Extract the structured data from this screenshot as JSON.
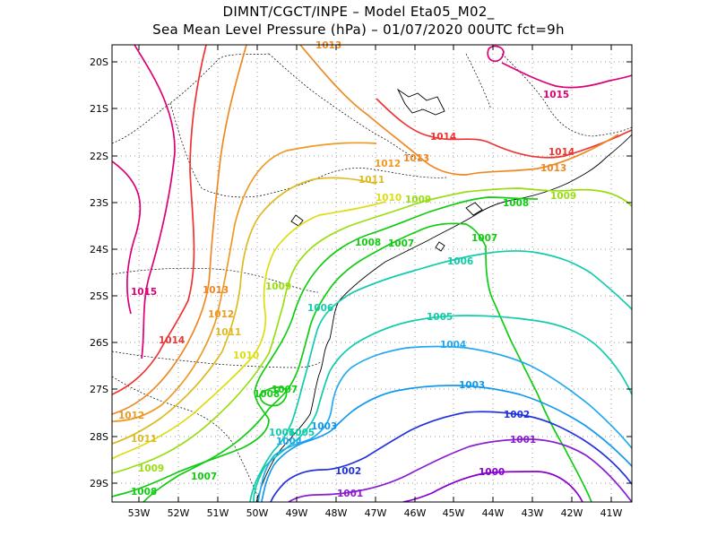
{
  "title": {
    "line1": "DIMNT/CGCT/INPE –  Model Eta05_M02_",
    "line2": "Sea Mean Level Pressure (hPa) – 01/07/2020 00UTC fct=9h"
  },
  "map": {
    "lon_range": [
      -53.7,
      -40.5
    ],
    "lat_range": [
      -29.4,
      -19.8
    ],
    "lat_ticks": [
      "20S",
      "21S",
      "22S",
      "23S",
      "24S",
      "25S",
      "26S",
      "27S",
      "28S",
      "29S"
    ],
    "lon_ticks": [
      "53W",
      "52W",
      "51W",
      "50W",
      "49W",
      "48W",
      "47W",
      "46W",
      "45W",
      "44W",
      "43W",
      "42W",
      "41W"
    ],
    "grid": "dotted"
  },
  "isobar_colors": {
    "1000": "#8800cc",
    "1001": "#8a1fd0",
    "1002": "#2233dd",
    "1003": "#1199ee",
    "1004": "#22aaee",
    "1005": "#11ccaa",
    "1006": "#11ccaa",
    "1007": "#11cc11",
    "1008": "#11cc11",
    "1009": "#99dd11",
    "1010": "#dddd11",
    "1011": "#ddbb22",
    "1012": "#ee9922",
    "1013": "#ee8822",
    "1014": "#ee3333",
    "1015": "#dd0077"
  },
  "contour_labels": [
    {
      "text": "1015",
      "color": "#dd0077"
    },
    {
      "text": "1015",
      "color": "#dd0077"
    },
    {
      "text": "1014",
      "color": "#ee3333"
    },
    {
      "text": "1014",
      "color": "#ee3333"
    },
    {
      "text": "1014",
      "color": "#ee3333"
    },
    {
      "text": "1013",
      "color": "#ee8822"
    },
    {
      "text": "1013",
      "color": "#ee8822"
    },
    {
      "text": "1013",
      "color": "#ee8822"
    },
    {
      "text": "1013",
      "color": "#ee8822"
    },
    {
      "text": "1012",
      "color": "#ee9922"
    },
    {
      "text": "1012",
      "color": "#ee9922"
    },
    {
      "text": "1012",
      "color": "#ee9922"
    },
    {
      "text": "1011",
      "color": "#ddbb22"
    },
    {
      "text": "1011",
      "color": "#ddbb22"
    },
    {
      "text": "1011",
      "color": "#ddbb22"
    },
    {
      "text": "1010",
      "color": "#dddd11"
    },
    {
      "text": "1010",
      "color": "#dddd11"
    },
    {
      "text": "1009",
      "color": "#99dd11"
    },
    {
      "text": "1009",
      "color": "#99dd11"
    },
    {
      "text": "1009",
      "color": "#99dd11"
    },
    {
      "text": "1009",
      "color": "#99dd11"
    },
    {
      "text": "1008",
      "color": "#11cc11"
    },
    {
      "text": "1008",
      "color": "#11cc11"
    },
    {
      "text": "1008",
      "color": "#11cc11"
    },
    {
      "text": "1008",
      "color": "#11cc11"
    },
    {
      "text": "1007",
      "color": "#11cc11"
    },
    {
      "text": "1007",
      "color": "#11cc11"
    },
    {
      "text": "1007",
      "color": "#11cc11"
    },
    {
      "text": "1007",
      "color": "#11cc11"
    },
    {
      "text": "1006",
      "color": "#11ccaa"
    },
    {
      "text": "1006",
      "color": "#11ccaa"
    },
    {
      "text": "1006",
      "color": "#11ccaa"
    },
    {
      "text": "1005",
      "color": "#11ccaa"
    },
    {
      "text": "1005",
      "color": "#11ccaa"
    },
    {
      "text": "1004",
      "color": "#22aaee"
    },
    {
      "text": "1004",
      "color": "#22aaee"
    },
    {
      "text": "1003",
      "color": "#1199ee"
    },
    {
      "text": "1003",
      "color": "#1199ee"
    },
    {
      "text": "1002",
      "color": "#2233dd"
    },
    {
      "text": "1002",
      "color": "#2233dd"
    },
    {
      "text": "1001",
      "color": "#8a1fd0"
    },
    {
      "text": "1001",
      "color": "#8a1fd0"
    },
    {
      "text": "1000",
      "color": "#8800cc"
    }
  ]
}
